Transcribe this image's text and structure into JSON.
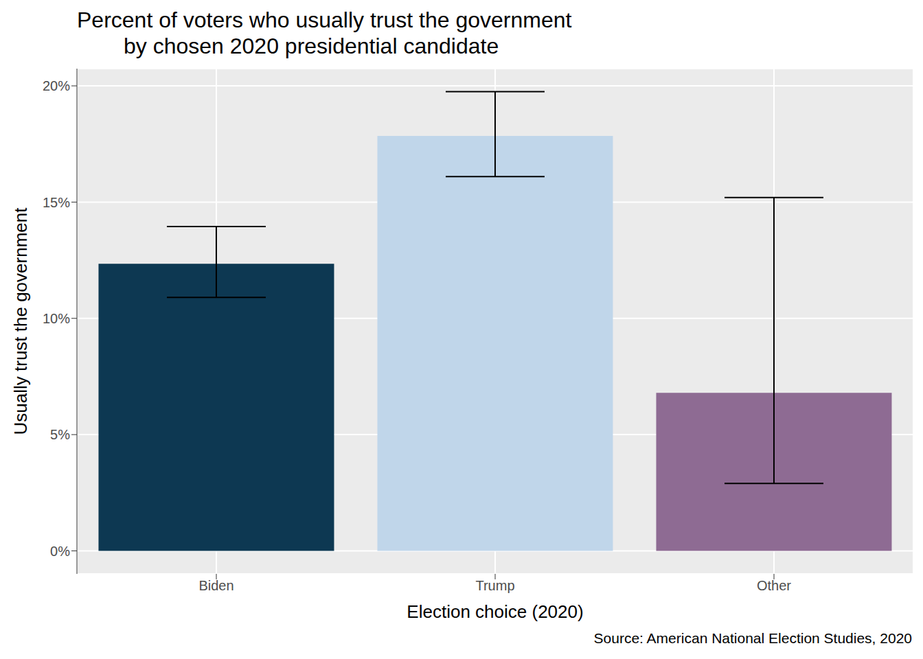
{
  "chart_data": {
    "type": "bar",
    "title": "Percent of voters who usually trust the government\nby chosen 2020 presidential candidate",
    "x_label": "Election choice (2020)",
    "y_label": "Usually trust the government",
    "caption": "Source: American National Election Studies, 2020",
    "categories": [
      "Biden",
      "Trump",
      "Other"
    ],
    "values": [
      12.35,
      17.85,
      6.8
    ],
    "error_lower": [
      10.9,
      16.1,
      2.9
    ],
    "error_upper": [
      13.95,
      19.75,
      15.2
    ],
    "colors": [
      "#0d3852",
      "#c0d6ea",
      "#8e6b93"
    ],
    "ylim": [
      -0.99,
      20.74
    ],
    "yticks": [
      {
        "value": 0,
        "label": "0%"
      },
      {
        "value": 5,
        "label": "5%"
      },
      {
        "value": 10,
        "label": "10%"
      },
      {
        "value": 15,
        "label": "15%"
      },
      {
        "value": 20,
        "label": "20%"
      }
    ],
    "grid": true
  }
}
